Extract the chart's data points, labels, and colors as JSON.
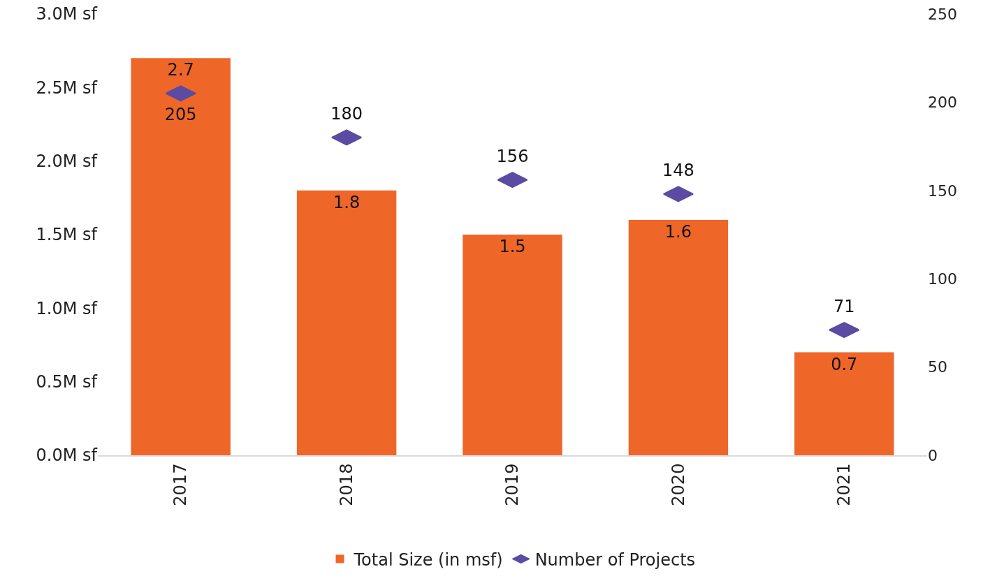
{
  "chart_data": {
    "type": "bar",
    "categories": [
      "2017",
      "2018",
      "2019",
      "2020",
      "2021"
    ],
    "series": [
      {
        "name": "Total Size (in msf)",
        "color": "#ef6629",
        "values": [
          2.7,
          1.8,
          1.5,
          1.6,
          0.7
        ]
      },
      {
        "name": "Number of Projects",
        "type": "scatter",
        "axis": "y2",
        "color": "#5b4ba3",
        "values": [
          205,
          180,
          156,
          148,
          71
        ]
      }
    ],
    "ylim": [
      0,
      3
    ],
    "yticks": [
      {
        "value": 0,
        "label": "0.0M sf"
      },
      {
        "value": 0.5,
        "label": "0.5M sf"
      },
      {
        "value": 1,
        "label": "1.0M sf"
      },
      {
        "value": 1.5,
        "label": "1.5M sf"
      },
      {
        "value": 2,
        "label": "2.0M sf"
      },
      {
        "value": 2.5,
        "label": "2.5M sf"
      },
      {
        "value": 3,
        "label": "3.0M sf"
      }
    ],
    "y2lim": [
      0,
      250
    ],
    "y2ticks": [
      0,
      50,
      100,
      150,
      200,
      250
    ],
    "data_labels": true,
    "grid": false,
    "legend": "bottom"
  }
}
